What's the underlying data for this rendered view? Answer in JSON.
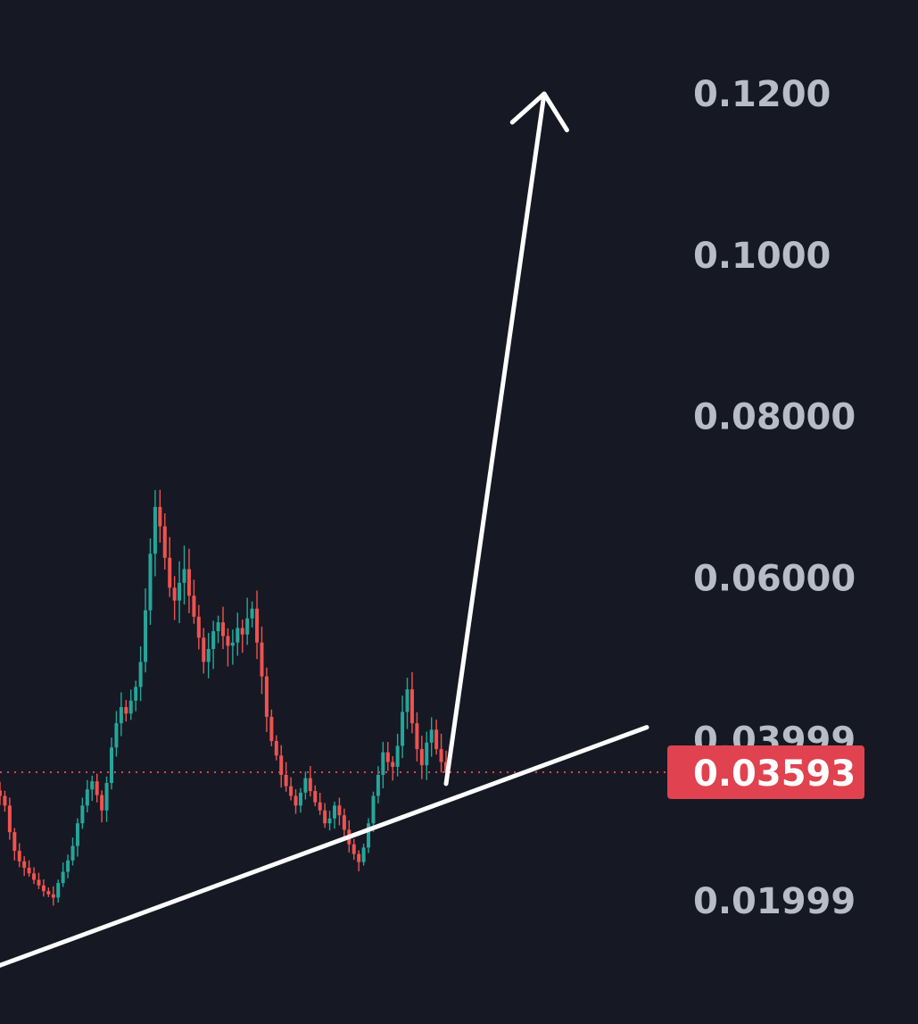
{
  "chart_data": {
    "type": "candlestick",
    "title": "",
    "xlabel": "",
    "ylabel": "",
    "ylim": [
      0.01,
      0.13
    ],
    "y_ticks": [
      "0.1200",
      "0.1000",
      "0.08000",
      "0.06000",
      "0.03999",
      "0.01999"
    ],
    "current_price": {
      "value": "0.03593",
      "numeric": 0.03593,
      "line_style": "dotted",
      "label_color": "#e0424f"
    },
    "candle_colors": {
      "up": "#26a69a",
      "down": "#ef5350"
    },
    "series": [
      {
        "values": [
          0.033,
          0.0318,
          0.0285,
          0.0262,
          0.0249,
          0.0241,
          0.0234,
          0.0226,
          0.0219,
          0.0212,
          0.0208,
          0.0204,
          0.0222,
          0.0236,
          0.025,
          0.0268,
          0.0296,
          0.0318,
          0.0338,
          0.0348,
          0.0331,
          0.0312,
          0.0346,
          0.039,
          0.042,
          0.044,
          0.0432,
          0.0448,
          0.0465,
          0.0496,
          0.056,
          0.063,
          0.0688,
          0.0664,
          0.0625,
          0.0588,
          0.0572,
          0.0594,
          0.0611,
          0.0578,
          0.0552,
          0.0526,
          0.0496,
          0.0512,
          0.0534,
          0.0545,
          0.0528,
          0.0516,
          0.052,
          0.0538,
          0.053,
          0.055,
          0.0562,
          0.052,
          0.0478,
          0.0428,
          0.0398,
          0.038,
          0.0356,
          0.0342,
          0.033,
          0.0318,
          0.0334,
          0.0352,
          0.0336,
          0.0322,
          0.0312,
          0.0296,
          0.0302,
          0.0318,
          0.0306,
          0.0288,
          0.027,
          0.0258,
          0.0248,
          0.0266,
          0.0296,
          0.033,
          0.0356,
          0.0384,
          0.0372,
          0.0366,
          0.0392,
          0.0434,
          0.0462,
          0.042,
          0.0388,
          0.0368,
          0.0396,
          0.0412,
          0.0388,
          0.0372,
          0.0359
        ]
      }
    ],
    "annotations": [
      {
        "type": "trendline",
        "points": [
          {
            "x": 0.0,
            "y": 0.012
          },
          {
            "x": 1.45,
            "y": 0.0415
          }
        ]
      },
      {
        "type": "arrow",
        "points": [
          {
            "x": 1.0,
            "y": 0.0345
          },
          {
            "x": 1.22,
            "y": 0.12
          }
        ]
      }
    ],
    "grid": false,
    "legend": "none"
  }
}
